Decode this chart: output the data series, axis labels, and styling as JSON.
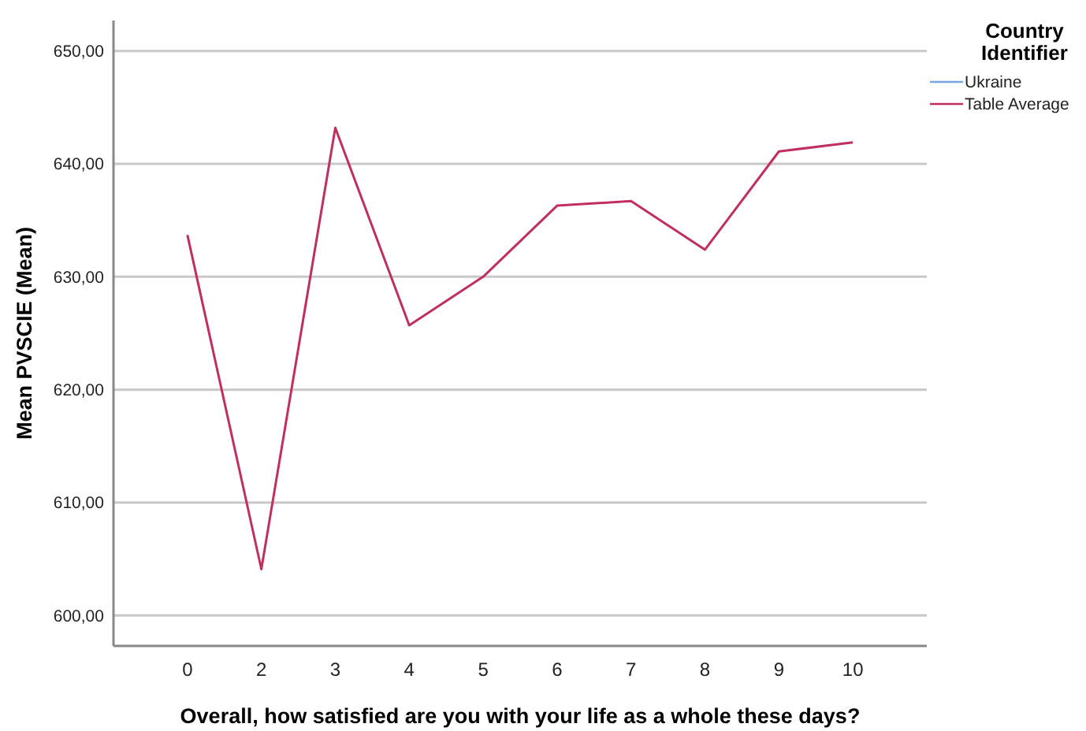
{
  "chart_data": {
    "type": "line",
    "xlabel": "Overall, how satisfied are you with your life as a whole these days?",
    "ylabel": "Mean PVSCIE (Mean)",
    "legend_title": "Country Identifier",
    "categories": [
      "0",
      "2",
      "3",
      "4",
      "5",
      "6",
      "7",
      "8",
      "9",
      "10"
    ],
    "series": [
      {
        "name": "Ukraine",
        "color": "#7ba7e0",
        "values": [
          null,
          null,
          null,
          null,
          null,
          null,
          null,
          null,
          null,
          null
        ]
      },
      {
        "name": "Table Average",
        "color": "#c0305f",
        "values": [
          633.7,
          604.1,
          643.2,
          625.7,
          630.0,
          636.3,
          636.7,
          632.4,
          641.1,
          641.9
        ]
      }
    ],
    "ylim": [
      597.3,
      652.7
    ],
    "yticks": [
      {
        "value": 600,
        "label": "600,00"
      },
      {
        "value": 610,
        "label": "610,00"
      },
      {
        "value": 620,
        "label": "620,00"
      },
      {
        "value": 630,
        "label": "630,00"
      },
      {
        "value": 640,
        "label": "640,00"
      },
      {
        "value": 650,
        "label": "650,00"
      }
    ],
    "grid": "y",
    "legend": "top right",
    "marker": "none",
    "line_style": "solid"
  }
}
